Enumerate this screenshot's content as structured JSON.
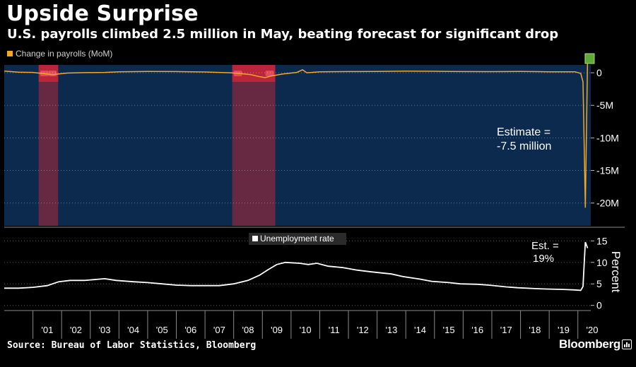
{
  "header": {
    "title": "Upside Surprise",
    "subtitle": "U.S. payrolls climbed 2.5 million in May, beating forecast for significant drop"
  },
  "footer": {
    "source": "Source: Bureau of Labor Statistics, Bloomberg",
    "brand": "Bloomberg"
  },
  "colors": {
    "background": "#000000",
    "payroll_panel": "#0c2a4d",
    "payroll_line": "#f5a623",
    "unemployment_line": "#ffffff",
    "recession_band": "#b3263a",
    "estimate_marker": "#5fa83b"
  },
  "chart_data": [
    {
      "type": "area",
      "legend": "Change in payrolls (MoM)",
      "legend_position": "top-left",
      "y_ticks": [
        {
          "value": 0,
          "label": "0"
        },
        {
          "value": -5,
          "label": "-5M"
        },
        {
          "value": -10,
          "label": "-10M"
        },
        {
          "value": -15,
          "label": "-15M"
        },
        {
          "value": -20,
          "label": "-20M"
        }
      ],
      "ylim": [
        -23.5,
        1.2
      ],
      "xlim": [
        2000.0,
        2020.45
      ],
      "x_tick_labels": [
        "'01",
        "'02",
        "'03",
        "'04",
        "'05",
        "'06",
        "'07",
        "'08",
        "'09",
        "'10",
        "'11",
        "'12",
        "'13",
        "'14",
        "'15",
        "'16",
        "'17",
        "'18",
        "'19",
        "'20"
      ],
      "x_tick_values": [
        2001,
        2002,
        2003,
        2004,
        2005,
        2006,
        2007,
        2008,
        2009,
        2010,
        2011,
        2012,
        2013,
        2014,
        2015,
        2016,
        2017,
        2018,
        2019,
        2020
      ],
      "recessions": [
        [
          2001.2,
          2001.88
        ],
        [
          2007.95,
          2009.45
        ]
      ],
      "annotation": {
        "lines": [
          "Estimate =",
          "-7.5 million"
        ],
        "value": -7.5
      },
      "series": [
        {
          "values_unit": "millions",
          "points": [
            [
              2000.0,
              0.25
            ],
            [
              2000.5,
              0.1
            ],
            [
              2001.0,
              0.05
            ],
            [
              2001.3,
              -0.1
            ],
            [
              2001.7,
              -0.3
            ],
            [
              2001.88,
              -0.2
            ],
            [
              2002.2,
              -0.05
            ],
            [
              2002.8,
              0.02
            ],
            [
              2003.5,
              0.05
            ],
            [
              2004.0,
              0.15
            ],
            [
              2005.0,
              0.2
            ],
            [
              2006.0,
              0.18
            ],
            [
              2007.0,
              0.12
            ],
            [
              2007.9,
              0.0
            ],
            [
              2008.3,
              -0.15
            ],
            [
              2008.6,
              -0.3
            ],
            [
              2008.9,
              -0.6
            ],
            [
              2009.1,
              -0.75
            ],
            [
              2009.3,
              -0.5
            ],
            [
              2009.7,
              -0.2
            ],
            [
              2010.2,
              0.05
            ],
            [
              2010.4,
              0.45
            ],
            [
              2010.55,
              0.0
            ],
            [
              2011.0,
              0.15
            ],
            [
              2012.0,
              0.18
            ],
            [
              2013.0,
              0.2
            ],
            [
              2014.0,
              0.25
            ],
            [
              2015.0,
              0.22
            ],
            [
              2016.0,
              0.18
            ],
            [
              2017.0,
              0.17
            ],
            [
              2018.0,
              0.2
            ],
            [
              2019.0,
              0.15
            ],
            [
              2019.9,
              0.15
            ],
            [
              2020.1,
              -0.1
            ],
            [
              2020.18,
              -1.4
            ],
            [
              2020.26,
              -20.7
            ],
            [
              2020.34,
              2.5
            ],
            [
              2020.4,
              2.5
            ]
          ]
        }
      ]
    },
    {
      "type": "line",
      "legend": "Unemployment rate",
      "legend_position": "top-center",
      "ylabel": "Percent",
      "y_ticks": [
        {
          "value": 0,
          "label": "0"
        },
        {
          "value": 5,
          "label": "5"
        },
        {
          "value": 10,
          "label": "10"
        },
        {
          "value": 15,
          "label": "15"
        }
      ],
      "ylim": [
        -1.2,
        18.0
      ],
      "annotation": {
        "lines": [
          "Est. =",
          "19%"
        ],
        "value": 19
      },
      "series": [
        {
          "points": [
            [
              2000.0,
              4.0
            ],
            [
              2000.5,
              4.0
            ],
            [
              2001.0,
              4.2
            ],
            [
              2001.5,
              4.6
            ],
            [
              2001.9,
              5.5
            ],
            [
              2002.3,
              5.8
            ],
            [
              2002.8,
              5.8
            ],
            [
              2003.5,
              6.2
            ],
            [
              2003.9,
              5.8
            ],
            [
              2004.5,
              5.5
            ],
            [
              2005.0,
              5.3
            ],
            [
              2005.5,
              5.0
            ],
            [
              2006.0,
              4.7
            ],
            [
              2006.5,
              4.6
            ],
            [
              2007.0,
              4.6
            ],
            [
              2007.5,
              4.6
            ],
            [
              2008.0,
              5.0
            ],
            [
              2008.5,
              5.8
            ],
            [
              2008.9,
              7.0
            ],
            [
              2009.2,
              8.3
            ],
            [
              2009.5,
              9.5
            ],
            [
              2009.8,
              10.0
            ],
            [
              2010.3,
              9.8
            ],
            [
              2010.6,
              9.5
            ],
            [
              2010.9,
              9.8
            ],
            [
              2011.3,
              9.1
            ],
            [
              2011.8,
              8.8
            ],
            [
              2012.3,
              8.2
            ],
            [
              2012.8,
              7.8
            ],
            [
              2013.5,
              7.3
            ],
            [
              2013.9,
              6.7
            ],
            [
              2014.5,
              6.1
            ],
            [
              2014.9,
              5.6
            ],
            [
              2015.5,
              5.3
            ],
            [
              2015.9,
              5.0
            ],
            [
              2016.5,
              4.9
            ],
            [
              2016.9,
              4.7
            ],
            [
              2017.5,
              4.3
            ],
            [
              2017.9,
              4.1
            ],
            [
              2018.5,
              3.9
            ],
            [
              2018.9,
              3.8
            ],
            [
              2019.5,
              3.7
            ],
            [
              2019.9,
              3.6
            ],
            [
              2020.1,
              3.5
            ],
            [
              2020.18,
              4.4
            ],
            [
              2020.26,
              14.7
            ],
            [
              2020.34,
              13.3
            ]
          ]
        }
      ]
    }
  ]
}
